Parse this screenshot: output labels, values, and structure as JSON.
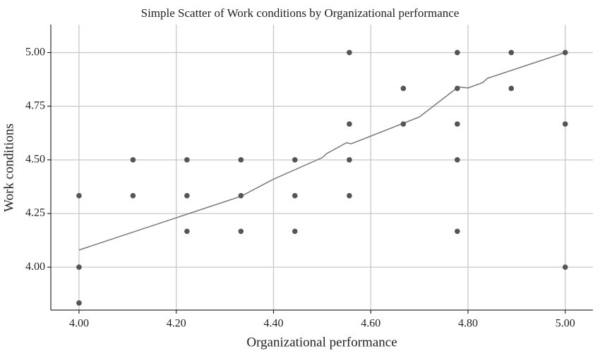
{
  "chart_data": {
    "type": "scatter",
    "title": "Simple Scatter of Work conditions by Organizational performance",
    "x_label": "Organizational performance",
    "y_label": "Work conditions",
    "color": "#555555",
    "x": [
      4.0,
      4.0,
      4.0,
      4.111,
      4.111,
      4.222,
      4.222,
      4.222,
      4.333,
      4.333,
      4.333,
      4.444,
      4.444,
      4.444,
      4.556,
      4.556,
      4.556,
      4.556,
      4.667,
      4.667,
      4.778,
      4.778,
      4.778,
      4.778,
      4.778,
      4.889,
      4.889,
      5.0,
      5.0,
      5.0
    ],
    "values": [
      4.333,
      4.0,
      3.833,
      4.5,
      4.333,
      4.5,
      4.333,
      4.167,
      4.5,
      4.333,
      4.167,
      4.5,
      4.333,
      4.167,
      5.0,
      4.667,
      4.5,
      4.333,
      4.833,
      4.667,
      5.0,
      4.833,
      4.667,
      4.5,
      4.167,
      5.0,
      4.833,
      5.0,
      4.667,
      4.0
    ],
    "fit": {
      "color": "#777777",
      "x": [
        4.0,
        4.333,
        4.4,
        4.5,
        4.51,
        4.55,
        4.56,
        4.7,
        4.78,
        4.8,
        4.83,
        4.84,
        5.0
      ],
      "values": [
        4.08,
        4.33,
        4.41,
        4.51,
        4.53,
        4.58,
        4.575,
        4.7,
        4.84,
        4.835,
        4.86,
        4.88,
        5.0
      ]
    },
    "xlim": [
      3.942,
      5.057
    ],
    "ylim": [
      3.8,
      5.13
    ],
    "xticks": [
      {
        "value": 4.0,
        "label": "4.00"
      },
      {
        "value": 4.2,
        "label": "4.20"
      },
      {
        "value": 4.4,
        "label": "4.40"
      },
      {
        "value": 4.6,
        "label": "4.60"
      },
      {
        "value": 4.8,
        "label": "4.80"
      },
      {
        "value": 5.0,
        "label": "5.00"
      }
    ],
    "yticks": [
      {
        "value": 4.0,
        "label": "4.00"
      },
      {
        "value": 4.25,
        "label": "4.25"
      },
      {
        "value": 4.5,
        "label": "4.50"
      },
      {
        "value": 4.75,
        "label": "4.75"
      },
      {
        "value": 5.0,
        "label": "5.00"
      }
    ],
    "grid": true
  }
}
